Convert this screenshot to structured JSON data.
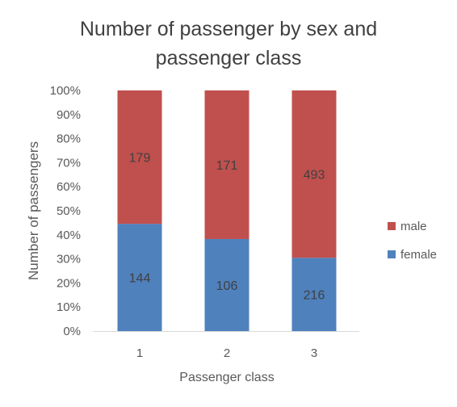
{
  "chart_data": {
    "type": "bar",
    "stacked": "percent",
    "title_lines": [
      "Number of passenger by sex and",
      "passenger class"
    ],
    "xlabel": "Passenger class",
    "ylabel": "Number of passengers",
    "categories": [
      "1",
      "2",
      "3"
    ],
    "ylim": [
      0,
      100
    ],
    "yticks": [
      "0%",
      "10%",
      "20%",
      "30%",
      "40%",
      "50%",
      "60%",
      "70%",
      "80%",
      "90%",
      "100%"
    ],
    "series": [
      {
        "name": "female",
        "values": [
          144,
          106,
          216
        ],
        "color": "#4f81bd"
      },
      {
        "name": "male",
        "values": [
          179,
          171,
          493
        ],
        "color": "#c0504d"
      }
    ],
    "legend_position": "right",
    "grid": false
  }
}
